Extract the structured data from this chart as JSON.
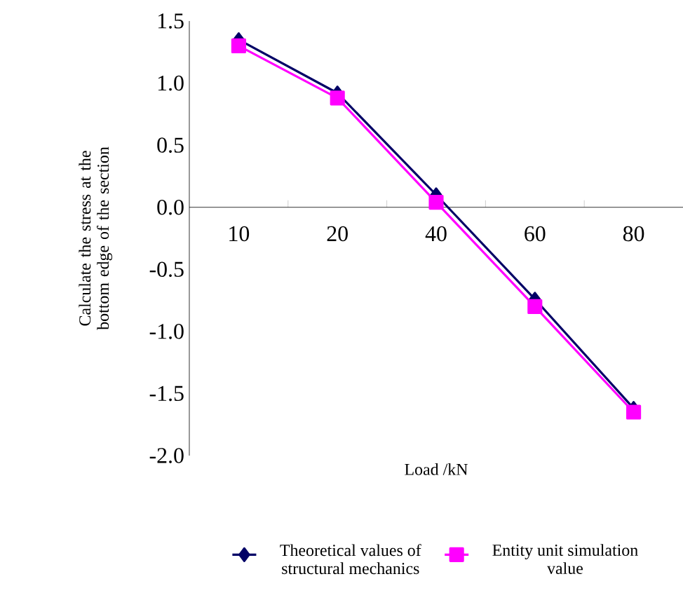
{
  "chart_data": {
    "type": "line",
    "xlabel": "Load /kN",
    "ylabel": "Calculate the stress at the bottom edge of the section",
    "categories": [
      "10",
      "20",
      "40",
      "60",
      "80"
    ],
    "series": [
      {
        "name": "Theoretical values of structural mechanics",
        "color": "#000066",
        "marker": "diamond",
        "values": [
          1.35,
          0.92,
          0.1,
          -0.74,
          -1.62
        ]
      },
      {
        "name": "Entity unit simulation value",
        "color": "#ff00ff",
        "marker": "square",
        "values": [
          1.3,
          0.88,
          0.04,
          -0.8,
          -1.65
        ]
      }
    ],
    "ylim": [
      -2.0,
      1.5
    ],
    "yticks": [
      {
        "value": -2,
        "label": "-2.0"
      },
      -1.5,
      {
        "value": -1,
        "label": "-1.0"
      },
      -0.5,
      {
        "value": 0,
        "label": "0.0"
      },
      0.5,
      {
        "value": 1,
        "label": "1.0"
      },
      1.5
    ],
    "legend": "bottom",
    "grid": false,
    "line_style": "solid"
  }
}
